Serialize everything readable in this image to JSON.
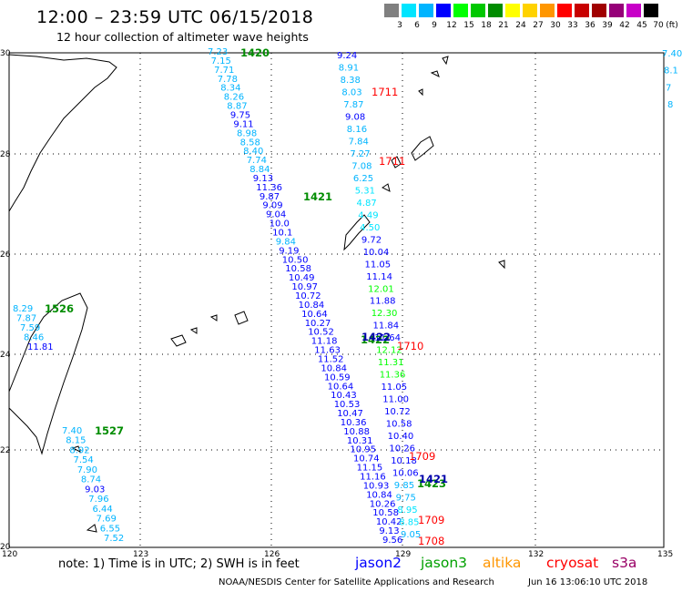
{
  "header": {
    "title": "12:00 – 23:59 UTC 06/15/2018",
    "subtitle": "12 hour collection of altimeter wave heights"
  },
  "color_scale": {
    "unit_label": "(ft)",
    "bins": [
      {
        "label": "3",
        "color": "#808080"
      },
      {
        "label": "6",
        "color": "#00e5ff"
      },
      {
        "label": "9",
        "color": "#00b4ff"
      },
      {
        "label": "12",
        "color": "#0000ff"
      },
      {
        "label": "15",
        "color": "#00ff00"
      },
      {
        "label": "18",
        "color": "#00c800"
      },
      {
        "label": "21",
        "color": "#008c00"
      },
      {
        "label": "24",
        "color": "#ffff00"
      },
      {
        "label": "27",
        "color": "#ffd200"
      },
      {
        "label": "30",
        "color": "#ff9600"
      },
      {
        "label": "33",
        "color": "#ff0000"
      },
      {
        "label": "36",
        "color": "#c80000"
      },
      {
        "label": "39",
        "color": "#a00000"
      },
      {
        "label": "42",
        "color": "#960078"
      },
      {
        "label": "45",
        "color": "#c800c8"
      },
      {
        "label": "70",
        "color": "#000000"
      }
    ]
  },
  "axes": {
    "lat_ticks": [
      "30",
      "28",
      "26",
      "24",
      "22",
      "20"
    ],
    "lon_ticks": [
      "120",
      "123",
      "126",
      "129",
      "132",
      "135"
    ]
  },
  "tracks": {
    "track_a": {
      "values": [
        "7.23",
        "7.15",
        "7.71",
        "7.78",
        "8.34",
        "8.26",
        "8.87",
        "9.75",
        "9.11",
        "8.98",
        "8.58",
        "8.40",
        "7.74",
        "8.84",
        "9.13",
        "11.36",
        "9.87",
        "9.09",
        "9.04",
        "10.0",
        "10.1",
        "9.84",
        "9.19",
        "10.50",
        "10.58",
        "10.49",
        "10.97",
        "10.72",
        "10.84",
        "10.64",
        "10.27",
        "10.52",
        "11.18",
        "11.63",
        "11.52",
        "10.84",
        "10.59",
        "10.64",
        "10.43",
        "10.53",
        "10.47",
        "10.36",
        "10.88",
        "10.31",
        "10.95",
        "10.74",
        "11.15",
        "11.16",
        "10.93",
        "10.84",
        "10.26",
        "10.58",
        "10.42",
        "9.13",
        "9.56"
      ],
      "colors": [
        "#00b4ff",
        "#00b4ff",
        "#00b4ff",
        "#00b4ff",
        "#00b4ff",
        "#00b4ff",
        "#00b4ff",
        "#0000ff",
        "#0000ff",
        "#00b4ff",
        "#00b4ff",
        "#00b4ff",
        "#00b4ff",
        "#00b4ff",
        "#0000ff",
        "#0000ff",
        "#0000ff",
        "#0000ff",
        "#0000ff",
        "#0000ff",
        "#0000ff",
        "#00b4ff",
        "#0000ff",
        "#0000ff",
        "#0000ff",
        "#0000ff",
        "#0000ff",
        "#0000ff",
        "#0000ff",
        "#0000ff",
        "#0000ff",
        "#0000ff",
        "#0000ff",
        "#0000ff",
        "#0000ff",
        "#0000ff",
        "#0000ff",
        "#0000ff",
        "#0000ff",
        "#0000ff",
        "#0000ff",
        "#0000ff",
        "#0000ff",
        "#0000ff",
        "#0000ff",
        "#0000ff",
        "#0000ff",
        "#0000ff",
        "#0000ff",
        "#0000ff",
        "#0000ff",
        "#0000ff",
        "#0000ff",
        "#0000ff",
        "#0000ff"
      ]
    },
    "track_b": {
      "values": [
        "9.24",
        "8.91",
        "8.38",
        "8.03",
        "7.87",
        "9.08",
        "8.16",
        "7.84",
        "7.27",
        "7.08",
        "6.25",
        "5.31",
        "4.87",
        "4.49",
        "4.50",
        "9.72",
        "10.04",
        "11.05",
        "11.14",
        "12.01",
        "11.88",
        "12.30",
        "11.84",
        "11.64",
        "12.12",
        "11.31",
        "11.36",
        "11.05",
        "11.00",
        "10.72",
        "10.58",
        "10.40",
        "10.26",
        "10.18",
        "10.06",
        "9.85",
        "9.75",
        "8.95",
        "8.85",
        "9.05"
      ],
      "colors": [
        "#0000ff",
        "#00b4ff",
        "#00b4ff",
        "#00b4ff",
        "#00b4ff",
        "#0000ff",
        "#00b4ff",
        "#00b4ff",
        "#00b4ff",
        "#00b4ff",
        "#00b4ff",
        "#00e5ff",
        "#00e5ff",
        "#00e5ff",
        "#00e5ff",
        "#0000ff",
        "#0000ff",
        "#0000ff",
        "#0000ff",
        "#00ff00",
        "#0000ff",
        "#00ff00",
        "#0000ff",
        "#0000ff",
        "#00ff00",
        "#00ff00",
        "#00ff00",
        "#0000ff",
        "#0000ff",
        "#0000ff",
        "#0000ff",
        "#0000ff",
        "#0000ff",
        "#0000ff",
        "#0000ff",
        "#00b4ff",
        "#00b4ff",
        "#00e5ff",
        "#00e5ff",
        "#00b4ff"
      ]
    },
    "track_taiwan_north": {
      "values": [
        "8.29",
        "7.87",
        "7.59",
        "8.46",
        "11.81"
      ],
      "colors": [
        "#00b4ff",
        "#00b4ff",
        "#00b4ff",
        "#00b4ff",
        "#0000ff"
      ]
    },
    "track_taiwan_south": {
      "values": [
        "7.40",
        "8.15",
        "8.92",
        "7.54",
        "7.90",
        "8.74",
        "9.03",
        "7.96",
        "6.44",
        "7.69",
        "6.55",
        "7.52"
      ],
      "colors": [
        "#00b4ff",
        "#00b4ff",
        "#00b4ff",
        "#00b4ff",
        "#00b4ff",
        "#00b4ff",
        "#0000ff",
        "#00b4ff",
        "#00b4ff",
        "#00b4ff",
        "#00b4ff",
        "#00b4ff"
      ]
    },
    "track_right_edge": {
      "values": [
        "7.40",
        "8.1",
        "7",
        "8"
      ],
      "colors": [
        "#00b4ff",
        "#00b4ff",
        "#00b4ff",
        "#00b4ff"
      ]
    }
  },
  "time_labels": [
    {
      "text": "1420",
      "color": "#008c00"
    },
    {
      "text": "1421",
      "color": "#008c00"
    },
    {
      "text": "1422",
      "color": "#008c00"
    },
    {
      "text": "1423",
      "color": "#008c00"
    },
    {
      "text": "1526",
      "color": "#008c00"
    },
    {
      "text": "1527",
      "color": "#008c00"
    },
    {
      "text": "1711",
      "color": "#ff0000"
    },
    {
      "text": "1711",
      "color": "#ff0000"
    },
    {
      "text": "1710",
      "color": "#ff0000"
    },
    {
      "text": "1709",
      "color": "#ff0000"
    },
    {
      "text": "1709",
      "color": "#ff0000"
    },
    {
      "text": "1708",
      "color": "#ff0000"
    },
    {
      "text": "1421",
      "color": "#0000aa"
    },
    {
      "text": "1422",
      "color": "#0000aa"
    }
  ],
  "legend": {
    "note": "note:  1) Time is in UTC;  2) SWH is in feet",
    "satellites": [
      {
        "name": "jason2",
        "color": "#0000ff"
      },
      {
        "name": "jason3",
        "color": "#00a000"
      },
      {
        "name": "altika",
        "color": "#ff9600"
      },
      {
        "name": "cryosat",
        "color": "#ff0000"
      },
      {
        "name": "s3a",
        "color": "#990066"
      }
    ]
  },
  "footer": {
    "credit": "NOAA/NESDIS Center for Satellite Applications and Research",
    "timestamp": "Jun 16 13:06:10 UTC 2018"
  }
}
